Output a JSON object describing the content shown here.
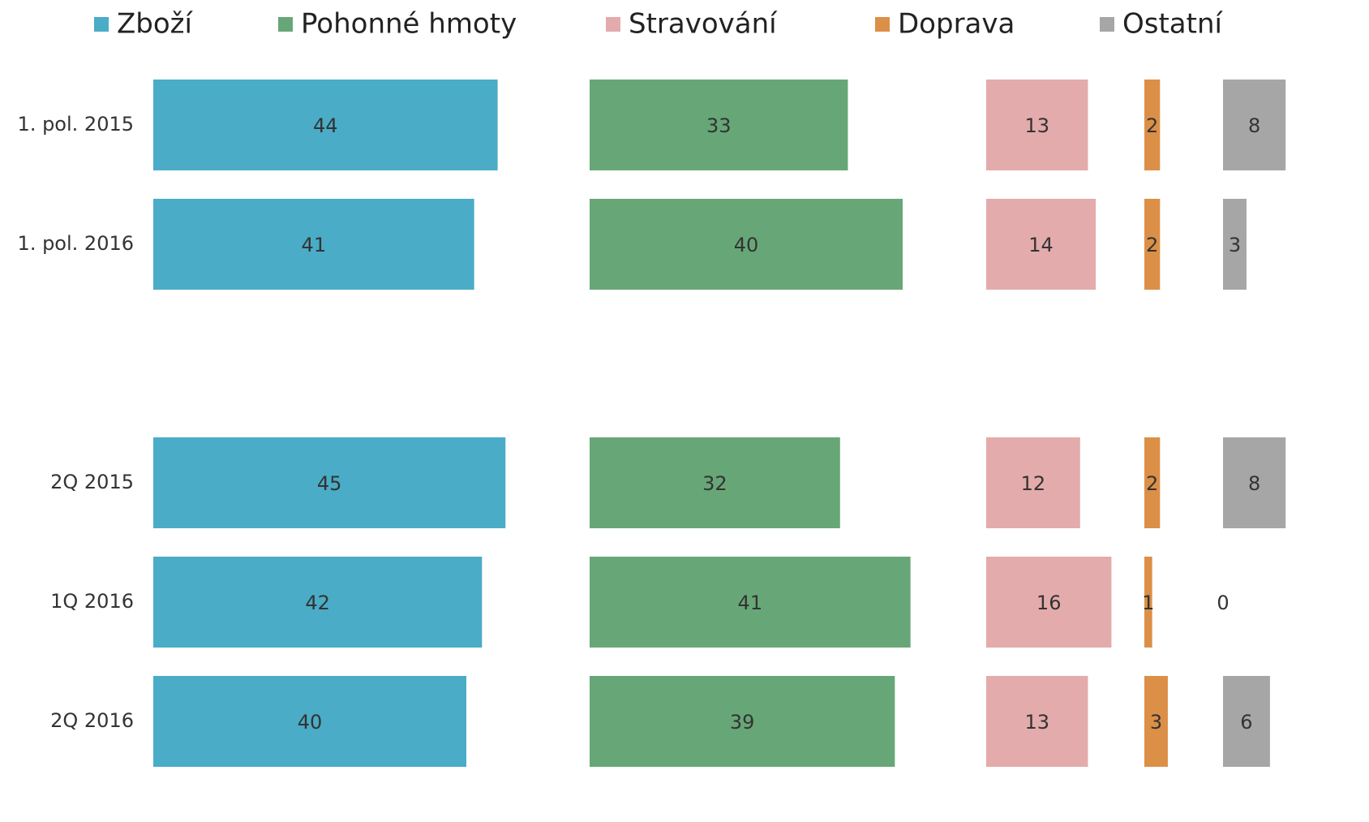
{
  "chart_data": {
    "type": "bar",
    "orientation": "horizontal",
    "categories": [
      "1. pol. 2015",
      "1. pol. 2016",
      null,
      "2Q 2015",
      "1Q 2016",
      "2Q 2016"
    ],
    "series": [
      {
        "name": "Zboží",
        "color": "#4aacc6",
        "values": [
          44,
          41,
          null,
          45,
          42,
          40
        ]
      },
      {
        "name": "Pohonné hmoty",
        "color": "#67a777",
        "values": [
          33,
          40,
          null,
          32,
          41,
          39
        ]
      },
      {
        "name": "Stravování",
        "color": "#e3abab",
        "values": [
          13,
          14,
          null,
          12,
          16,
          13
        ]
      },
      {
        "name": "Doprava",
        "color": "#dc8f47",
        "values": [
          2,
          2,
          null,
          2,
          1,
          3
        ]
      },
      {
        "name": "Ostatní",
        "color": "#a6a6a6",
        "values": [
          8,
          3,
          null,
          8,
          0,
          6
        ]
      }
    ]
  }
}
